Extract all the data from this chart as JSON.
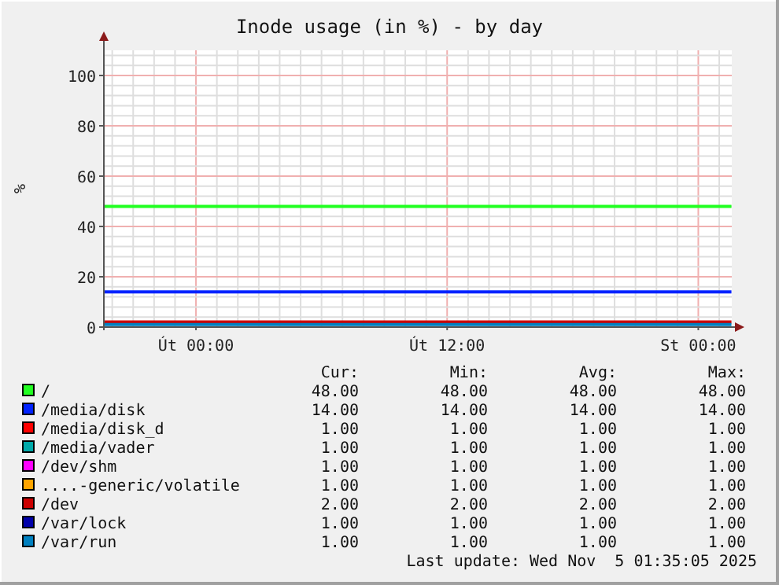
{
  "chart_data": {
    "type": "line",
    "title": "Inode usage (in %) - by day",
    "ylabel": "%",
    "xlim": [
      "2025-11-03T19:36",
      "2025-11-05T01:36"
    ],
    "ylim": [
      0,
      110
    ],
    "xticks": [
      {
        "value": "2025-11-03T20:00",
        "label": null
      },
      {
        "value": "2025-11-03T21:00",
        "label": null
      },
      {
        "value": "2025-11-03T22:00",
        "label": null
      },
      {
        "value": "2025-11-03T23:00",
        "label": null
      },
      {
        "value": "2025-11-04T00:00",
        "label": "Út 00:00"
      },
      {
        "value": "2025-11-04T01:00",
        "label": null
      },
      {
        "value": "2025-11-04T02:00",
        "label": null
      },
      {
        "value": "2025-11-04T03:00",
        "label": null
      },
      {
        "value": "2025-11-04T04:00",
        "label": null
      },
      {
        "value": "2025-11-04T05:00",
        "label": null
      },
      {
        "value": "2025-11-04T06:00",
        "label": null
      },
      {
        "value": "2025-11-04T07:00",
        "label": null
      },
      {
        "value": "2025-11-04T08:00",
        "label": null
      },
      {
        "value": "2025-11-04T09:00",
        "label": null
      },
      {
        "value": "2025-11-04T10:00",
        "label": null
      },
      {
        "value": "2025-11-04T11:00",
        "label": null
      },
      {
        "value": "2025-11-04T12:00",
        "label": "Út 12:00"
      },
      {
        "value": "2025-11-04T13:00",
        "label": null
      },
      {
        "value": "2025-11-04T14:00",
        "label": null
      },
      {
        "value": "2025-11-04T15:00",
        "label": null
      },
      {
        "value": "2025-11-04T16:00",
        "label": null
      },
      {
        "value": "2025-11-04T17:00",
        "label": null
      },
      {
        "value": "2025-11-04T18:00",
        "label": null
      },
      {
        "value": "2025-11-04T19:00",
        "label": null
      },
      {
        "value": "2025-11-04T20:00",
        "label": null
      },
      {
        "value": "2025-11-04T21:00",
        "label": null
      },
      {
        "value": "2025-11-04T22:00",
        "label": null
      },
      {
        "value": "2025-11-04T23:00",
        "label": null
      },
      {
        "value": "2025-11-05T00:00",
        "label": "St 00:00"
      },
      {
        "value": "2025-11-05T01:00",
        "label": null
      }
    ],
    "yticks": [
      0,
      {
        "value": 4,
        "label": null
      },
      {
        "value": 8,
        "label": null
      },
      {
        "value": 12,
        "label": null
      },
      {
        "value": 16,
        "label": null
      },
      20,
      {
        "value": 24,
        "label": null
      },
      {
        "value": 28,
        "label": null
      },
      {
        "value": 32,
        "label": null
      },
      {
        "value": 36,
        "label": null
      },
      40,
      {
        "value": 44,
        "label": null
      },
      {
        "value": 48,
        "label": null
      },
      {
        "value": 52,
        "label": null
      },
      {
        "value": 56,
        "label": null
      },
      60,
      {
        "value": 64,
        "label": null
      },
      {
        "value": 68,
        "label": null
      },
      {
        "value": 72,
        "label": null
      },
      {
        "value": 76,
        "label": null
      },
      80,
      {
        "value": 84,
        "label": null
      },
      {
        "value": 88,
        "label": null
      },
      {
        "value": 92,
        "label": null
      },
      {
        "value": 96,
        "label": null
      },
      100,
      {
        "value": 104,
        "label": null
      },
      {
        "value": 108,
        "label": null
      }
    ],
    "grid": true,
    "legend": "bottom",
    "marker": "none",
    "line_style": "solid",
    "x": [
      "2025-11-03T19:36",
      "2025-11-05T01:35"
    ],
    "series": [
      {
        "name": "/",
        "color": "#22ff22",
        "values": [
          48,
          48
        ]
      },
      {
        "name": "/media/disk",
        "color": "#0022ff",
        "values": [
          14,
          14
        ]
      },
      {
        "name": "/media/disk_d",
        "color": "#ff0000",
        "values": [
          null,
          null
        ]
      },
      {
        "name": "/media/vader",
        "color": "#00aaaa",
        "values": [
          null,
          null
        ]
      },
      {
        "name": "/dev/shm",
        "color": "#ff00ff",
        "values": [
          null,
          null
        ]
      },
      {
        "name": "....-generic/volatile",
        "color": "#ffa500",
        "values": [
          null,
          null
        ]
      },
      {
        "name": "/dev",
        "color": "#cc0000",
        "values": [
          2,
          2
        ]
      },
      {
        "name": "/var/lock",
        "color": "#0000aa",
        "values": [
          null,
          null
        ]
      },
      {
        "name": "/var/run",
        "color": "#0080c0",
        "values": [
          1,
          1
        ]
      }
    ],
    "annotations": [
      "Cur:",
      "Min:",
      "Avg:",
      "Max:",
      "48.00",
      "48.00",
      "48.00",
      "48.00",
      "14.00",
      "14.00",
      "14.00",
      "14.00",
      "1.00",
      "1.00",
      "1.00",
      "1.00",
      "1.00",
      "1.00",
      "1.00",
      "1.00",
      "1.00",
      "1.00",
      "1.00",
      "1.00",
      "1.00",
      "1.00",
      "1.00",
      "1.00",
      "2.00",
      "2.00",
      "2.00",
      "2.00",
      "1.00",
      "1.00",
      "1.00",
      "1.00",
      "1.00",
      "1.00",
      "1.00",
      "1.00",
      "Last update: Wed Nov  5 01:35:05 2025"
    ]
  }
}
